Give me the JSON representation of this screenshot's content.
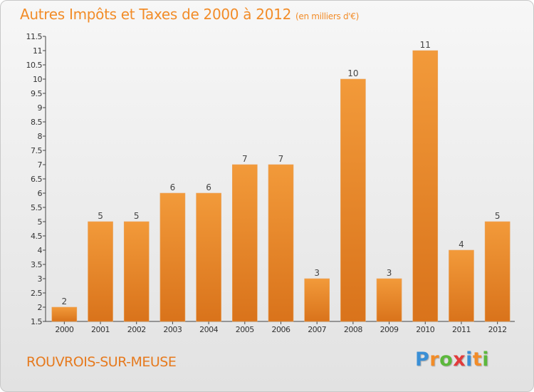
{
  "chart_data": {
    "type": "bar",
    "title": "Autres Impôts et Taxes de 2000 à 2012",
    "subtitle": "(en milliers d'€)",
    "categories": [
      "2000",
      "2001",
      "2002",
      "2003",
      "2004",
      "2005",
      "2006",
      "2007",
      "2008",
      "2009",
      "2010",
      "2011",
      "2012"
    ],
    "values": [
      2,
      5,
      5,
      6,
      6,
      7,
      7,
      3,
      10,
      3,
      11,
      4,
      5
    ],
    "ylim": [
      1.5,
      11.5
    ],
    "yticks": [
      "1.5",
      "2",
      "2.5",
      "3",
      "3.5",
      "4",
      "4.5",
      "5",
      "5.5",
      "6",
      "6.5",
      "7",
      "7.5",
      "8",
      "8.5",
      "9",
      "9.5",
      "10",
      "10.5",
      "11",
      "11.5"
    ],
    "grid": false,
    "bar_color": "#f29a3a",
    "bar_color_dark": "#d9731b"
  },
  "footer": {
    "commune": "ROUVROIS-SUR-MEUSE",
    "logo_letters": [
      "P",
      "r",
      "o",
      "x",
      "i",
      "t",
      "i"
    ],
    "logo_colors": [
      "#3a8fd6",
      "#f28c28",
      "#5cb83c",
      "#e23b3b",
      "#3a8fd6",
      "#f28c28",
      "#5cb83c"
    ]
  }
}
